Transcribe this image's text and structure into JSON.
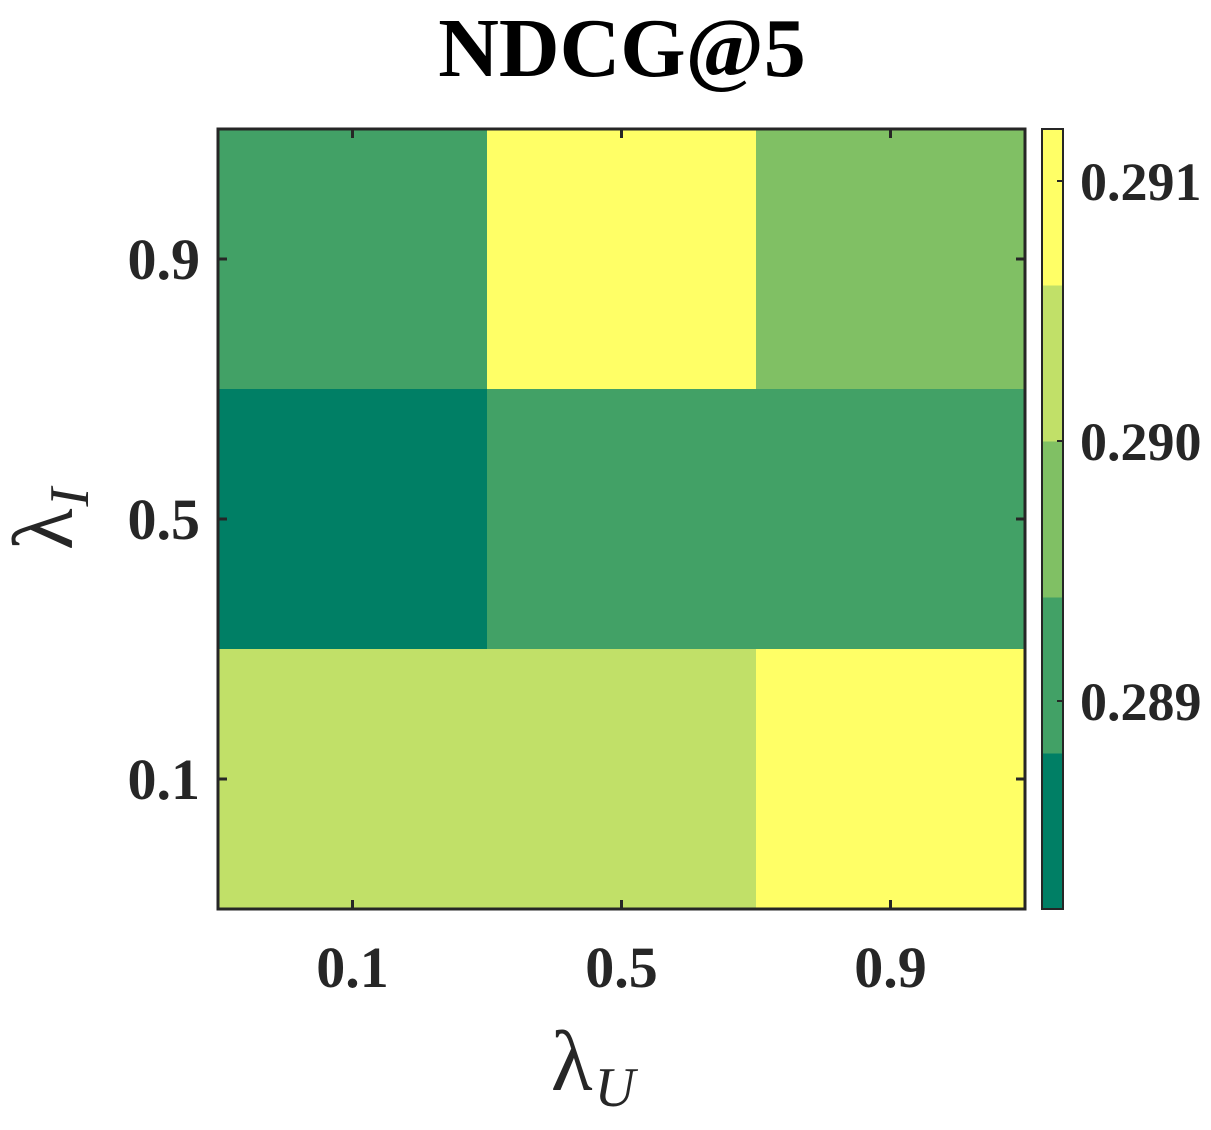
{
  "chart_data": {
    "type": "heatmap",
    "title": "NDCG@5",
    "x": {
      "symbol": "λ",
      "subscript": "U",
      "categories": [
        "0.1",
        "0.5",
        "0.9"
      ]
    },
    "y": {
      "symbol": "λ",
      "subscript": "I",
      "categories": [
        "0.9",
        "0.5",
        "0.1"
      ]
    },
    "values": [
      [
        0.2889,
        0.2913,
        0.2896
      ],
      [
        0.2884,
        0.2889,
        0.2889
      ],
      [
        0.2903,
        0.2903,
        0.2911
      ]
    ],
    "colorbar": {
      "range": [
        0.2882,
        0.2912
      ],
      "ticks": [
        0.289,
        0.29,
        0.291
      ],
      "tick_labels": [
        "0.289",
        "0.290",
        "0.291"
      ],
      "colors": [
        "#007f65",
        "#42a166",
        "#80c064",
        "#c1e068",
        "#ffff66"
      ]
    }
  }
}
